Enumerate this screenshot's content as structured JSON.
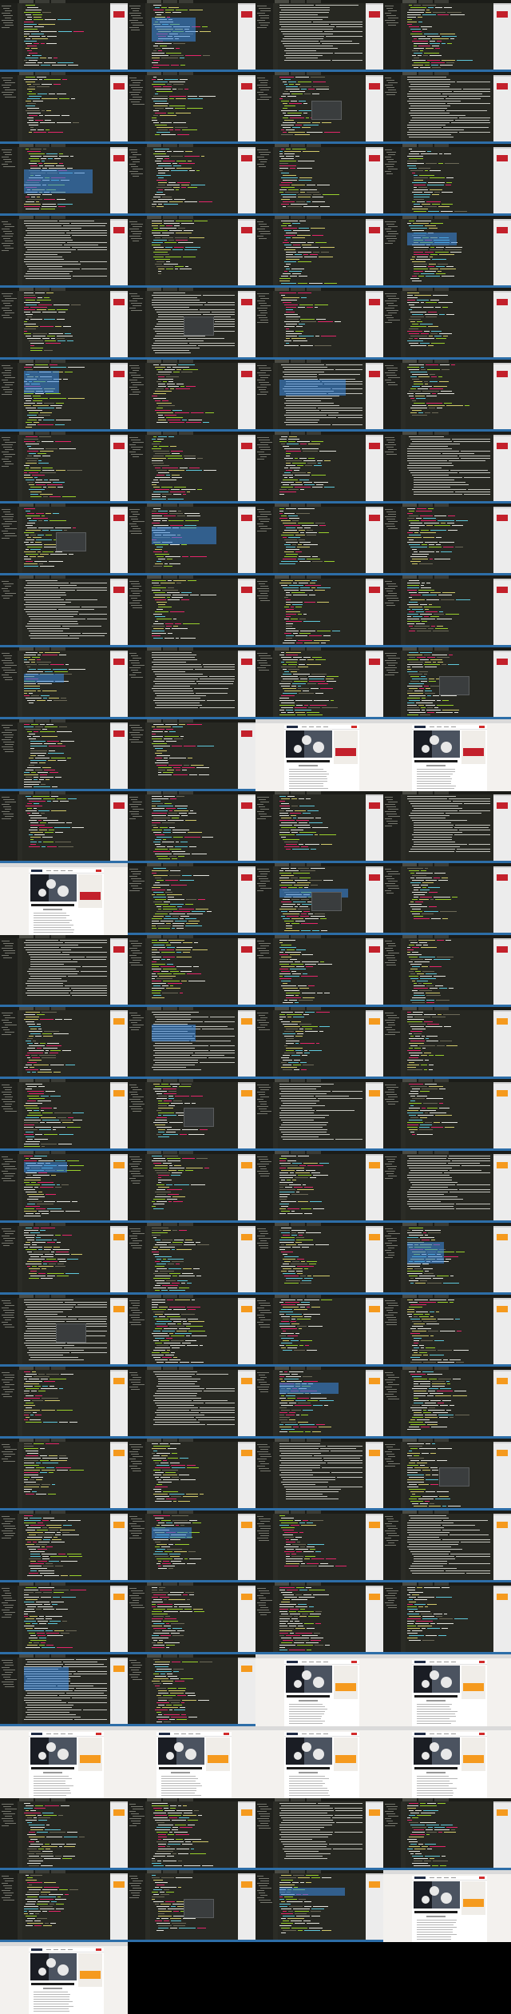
{
  "sheet": {
    "columns": 4,
    "rows": 28,
    "background": "#000000"
  },
  "colors": {
    "editor_bg": "#272822",
    "sidebar": "#1f201c",
    "status_bar": "#2d6ea8",
    "tag": "#f92672",
    "attribute": "#a6e22e",
    "string": "#e6db74",
    "text": "#f8f8f2",
    "punct": "#75715e",
    "keyword": "#66d9ef",
    "accent_red": "#c3202b",
    "accent_orange": "#f59a1e",
    "selection": "#3c8ce6"
  },
  "icons": {
    "editor": "code-editor-icon",
    "browser": "browser-window-icon"
  }
}
